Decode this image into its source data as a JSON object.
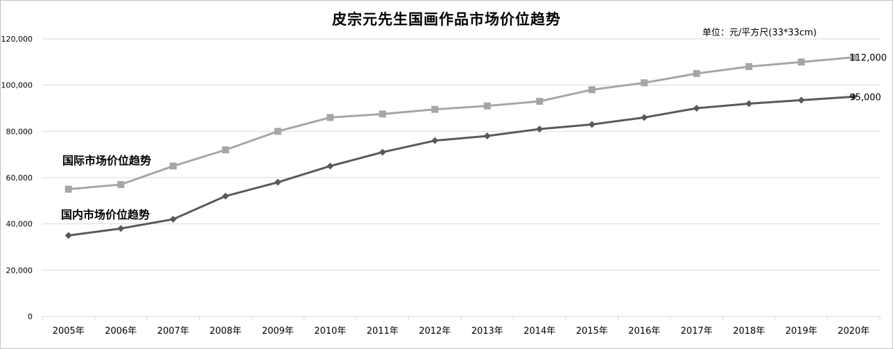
{
  "chart_data": {
    "type": "line",
    "title": "皮宗元先生国画作品市场价位趋势",
    "unit": "单位：元/平方尺(33*33cm)",
    "categories": [
      "2005年",
      "2006年",
      "2007年",
      "2008年",
      "2009年",
      "2010年",
      "2011年",
      "2012年",
      "2013年",
      "2014年",
      "2015年",
      "2016年",
      "2017年",
      "2018年",
      "2019年",
      "2020年"
    ],
    "ylim": [
      0,
      120000
    ],
    "yticks": [
      "0",
      "20,000",
      "40,000",
      "60,000",
      "80,000",
      "100,000",
      "120,000"
    ],
    "grid": true,
    "series": [
      {
        "name": "国际市场价位趋势",
        "color": "#a6a6a6",
        "marker": "square",
        "values": [
          55000,
          57000,
          65000,
          72000,
          80000,
          86000,
          87500,
          89500,
          91000,
          93000,
          98000,
          101000,
          105000,
          108000,
          110000,
          112000
        ],
        "end_label": "112,000"
      },
      {
        "name": "国内市场价位趋势",
        "color": "#595959",
        "marker": "diamond",
        "values": [
          35000,
          38000,
          42000,
          52000,
          58000,
          65000,
          71000,
          76000,
          78000,
          81000,
          83000,
          86000,
          90000,
          92000,
          93500,
          95000
        ],
        "end_label": "95,000"
      }
    ]
  }
}
